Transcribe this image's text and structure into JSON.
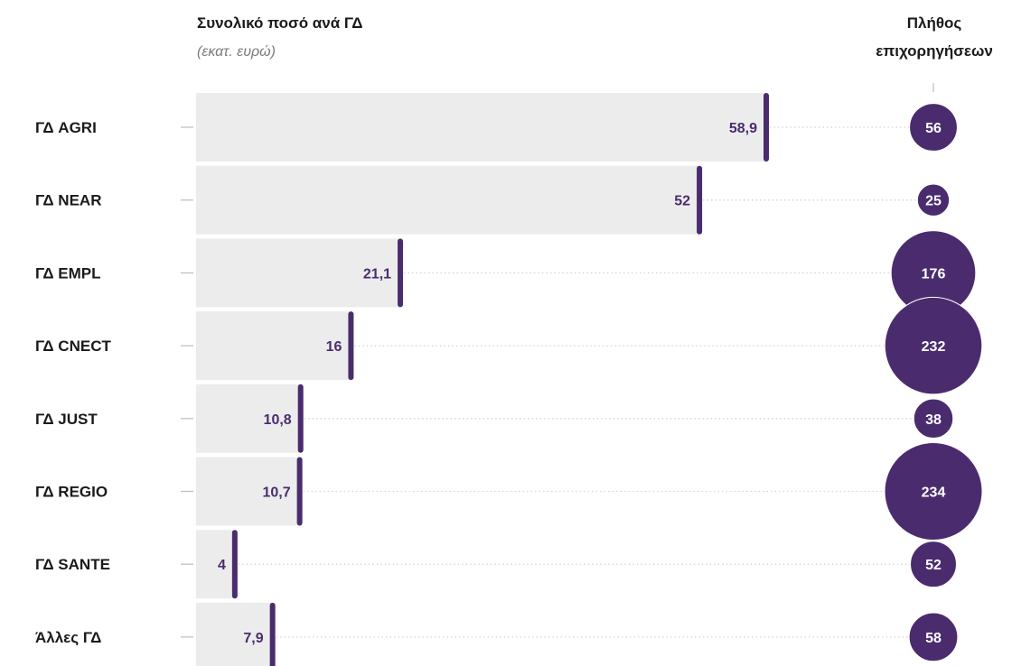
{
  "chart_data": {
    "type": "bar",
    "title": "Συνολικό ποσό ανά ΓΔ",
    "subtitle": "(εκατ. ευρώ)",
    "bubble_title_lines": [
      "Πλήθος",
      "επιχορηγήσεων"
    ],
    "categories": [
      "ΓΔ AGRI",
      "ΓΔ NEAR",
      "ΓΔ EMPL",
      "ΓΔ CNECT",
      "ΓΔ JUST",
      "ΓΔ REGIO",
      "ΓΔ SANTE",
      "Άλλες ΓΔ"
    ],
    "series": [
      {
        "values": [
          58.9,
          52,
          21.1,
          16,
          10.8,
          10.7,
          4,
          7.9
        ],
        "labels": [
          "58,9",
          "52",
          "21,1",
          "16",
          "10,8",
          "10,7",
          "4",
          "7,9"
        ]
      },
      {
        "values": [
          56,
          25,
          176,
          232,
          38,
          234,
          52,
          58
        ],
        "labels": [
          "56",
          "25",
          "176",
          "232",
          "38",
          "234",
          "52",
          "58"
        ]
      }
    ],
    "colors": {
      "accent": "#4a2c6e",
      "bar": "#ececed",
      "text": "#1a1a1a",
      "subtitle": "#7a7a7a",
      "dots": "#cfcfd3",
      "bubble_label": "#ffffff"
    }
  }
}
